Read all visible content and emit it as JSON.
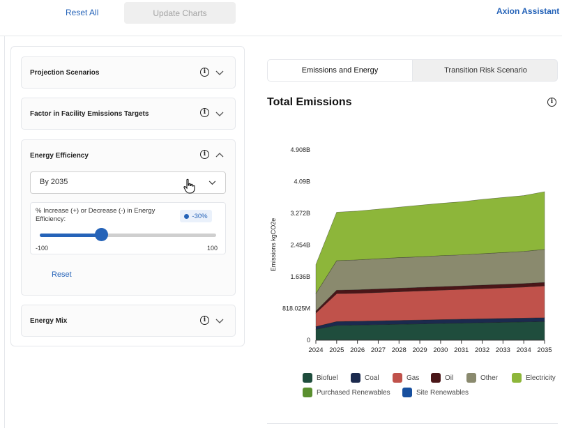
{
  "header": {
    "reset_all": "Reset All",
    "update_charts": "Update Charts",
    "assistant": "Axion Assistant"
  },
  "sidebar": {
    "sections": [
      {
        "title": "Projection Scenarios",
        "expanded": false
      },
      {
        "title": "Factor in Facility Emissions Targets",
        "expanded": false
      },
      {
        "title": "Energy Efficiency",
        "expanded": true
      },
      {
        "title": "Energy Mix",
        "expanded": false
      }
    ],
    "energy_efficiency": {
      "select_value": "By 2035",
      "slider_label": "% Increase (+) or Decrease (-) in Energy Efficiency:",
      "slider_value_text": "-30%",
      "slider_value": -30,
      "slider_min": -100,
      "slider_max": 100,
      "min_label": "-100",
      "max_label": "100",
      "reset": "Reset"
    }
  },
  "tabs": [
    {
      "label": "Emissions and Energy",
      "active": true
    },
    {
      "label": "Transition Risk Scenario",
      "active": false
    }
  ],
  "chart_data": {
    "type": "area",
    "stacked": true,
    "title": "Total Emissions",
    "ylabel": "Emissions kgCO2e",
    "xlabel": "",
    "x": [
      2024,
      2025,
      2026,
      2027,
      2028,
      2029,
      2030,
      2031,
      2032,
      2033,
      2034,
      2035
    ],
    "x_tick_labels": [
      "2024",
      "2025",
      "2026",
      "2027",
      "2028",
      "2029",
      "2030",
      "2031",
      "2032",
      "2033",
      "2034",
      "2035"
    ],
    "y_tick_values": [
      0,
      818025000,
      1636000000,
      2454000000,
      3272000000,
      4090000000,
      4908000000
    ],
    "y_tick_labels": [
      "0",
      "818.025M",
      "1.636B",
      "2.454B",
      "3.272B",
      "4.09B",
      "4.908B"
    ],
    "ylim": [
      0,
      4908000000
    ],
    "grid": false,
    "legend_position": "bottom",
    "series": [
      {
        "name": "Biofuel",
        "color": "#1f4d3d",
        "values": [
          280000000.0,
          380000000.0,
          390000000.0,
          400000000.0,
          410000000.0,
          420000000.0,
          430000000.0,
          440000000.0,
          450000000.0,
          460000000.0,
          470000000.0,
          480000000.0
        ]
      },
      {
        "name": "Coal",
        "color": "#1b2a4e",
        "values": [
          70000000.0,
          100000000.0,
          100000000.0,
          100000000.0,
          100000000.0,
          100000000.0,
          100000000.0,
          100000000.0,
          100000000.0,
          100000000.0,
          100000000.0,
          100000000.0
        ]
      },
      {
        "name": "Gas",
        "color": "#c0524b",
        "values": [
          350000000.0,
          720000000.0,
          720000000.0,
          730000000.0,
          740000000.0,
          750000000.0,
          760000000.0,
          770000000.0,
          780000000.0,
          790000000.0,
          800000000.0,
          820000000.0
        ]
      },
      {
        "name": "Oil",
        "color": "#4a1618",
        "values": [
          50000000.0,
          90000000.0,
          90000000.0,
          90000000.0,
          90000000.0,
          90000000.0,
          90000000.0,
          90000000.0,
          90000000.0,
          90000000.0,
          90000000.0,
          90000000.0
        ]
      },
      {
        "name": "Other",
        "color": "#8a8a6e",
        "values": [
          450000000.0,
          760000000.0,
          770000000.0,
          780000000.0,
          790000000.0,
          790000000.0,
          800000000.0,
          800000000.0,
          810000000.0,
          820000000.0,
          830000000.0,
          850000000.0
        ]
      },
      {
        "name": "Electricity",
        "color": "#8db63a",
        "values": [
          750000000.0,
          1250000000.0,
          1260000000.0,
          1280000000.0,
          1300000000.0,
          1330000000.0,
          1350000000.0,
          1370000000.0,
          1400000000.0,
          1420000000.0,
          1440000000.0,
          1490000000.0
        ]
      },
      {
        "name": "Purchased Renewables",
        "color": "#5a8f2f",
        "values": [
          0,
          0,
          0,
          0,
          0,
          0,
          0,
          0,
          0,
          0,
          0,
          0
        ]
      },
      {
        "name": "Site Renewables",
        "color": "#174f9e",
        "values": [
          0,
          0,
          0,
          0,
          0,
          0,
          0,
          0,
          0,
          0,
          0,
          0
        ]
      }
    ]
  }
}
